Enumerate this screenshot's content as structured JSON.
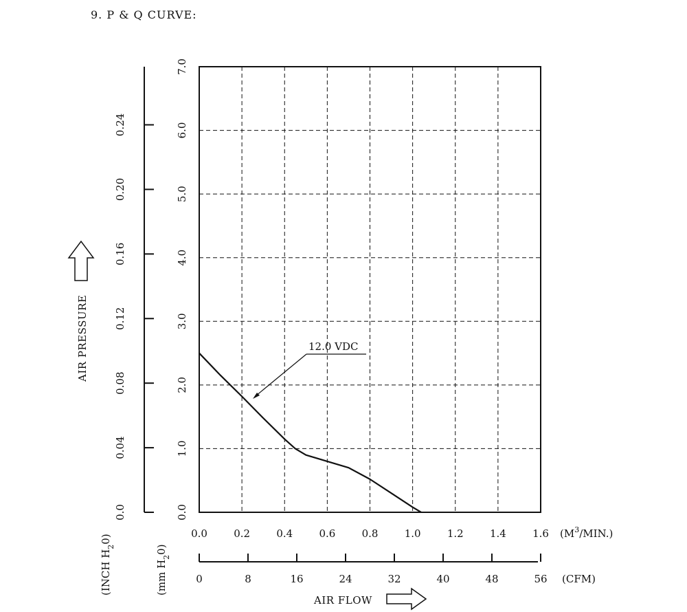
{
  "chart_data": {
    "type": "line",
    "title": "9. P & Q CURVE:",
    "series": [
      {
        "name": "12.0 VDC",
        "x": [
          0.0,
          0.1,
          0.2,
          0.3,
          0.4,
          0.45,
          0.5,
          0.6,
          0.7,
          0.8,
          0.9,
          1.0,
          1.04
        ],
        "y": [
          2.5,
          2.15,
          1.82,
          1.48,
          1.15,
          1.0,
          0.9,
          0.8,
          0.7,
          0.52,
          0.3,
          0.08,
          0.0
        ]
      }
    ],
    "x_axis": {
      "unit": "(M",
      "unit_sup": "3",
      "unit_tail": "/MIN.)",
      "range": [
        0,
        1.6
      ],
      "ticks": [
        "0.0",
        "0.2",
        "0.4",
        "0.6",
        "0.8",
        "1.0",
        "1.2",
        "1.4",
        "1.6"
      ]
    },
    "x_axis_secondary": {
      "unit": "(CFM)",
      "range": [
        0,
        56
      ],
      "ticks": [
        "0",
        "8",
        "16",
        "24",
        "32",
        "40",
        "48",
        "56"
      ]
    },
    "xlabel": "AIR FLOW",
    "y_axis": {
      "unit": "(mm H",
      "unit_sub": "2",
      "unit_tail": "0)",
      "range": [
        0,
        7
      ],
      "ticks": [
        "0.0",
        "1.0",
        "2.0",
        "3.0",
        "4.0",
        "5.0",
        "6.0",
        "7.0"
      ]
    },
    "y_axis_secondary": {
      "unit": "(INCH H",
      "unit_sub": "2",
      "unit_tail": "0)",
      "range": [
        0,
        0.276
      ],
      "ticks": [
        "0.0",
        "0.04",
        "0.08",
        "0.12",
        "0.16",
        "0.20",
        "0.24"
      ]
    },
    "ylabel": "AIR PRESSURE",
    "grid": true
  }
}
